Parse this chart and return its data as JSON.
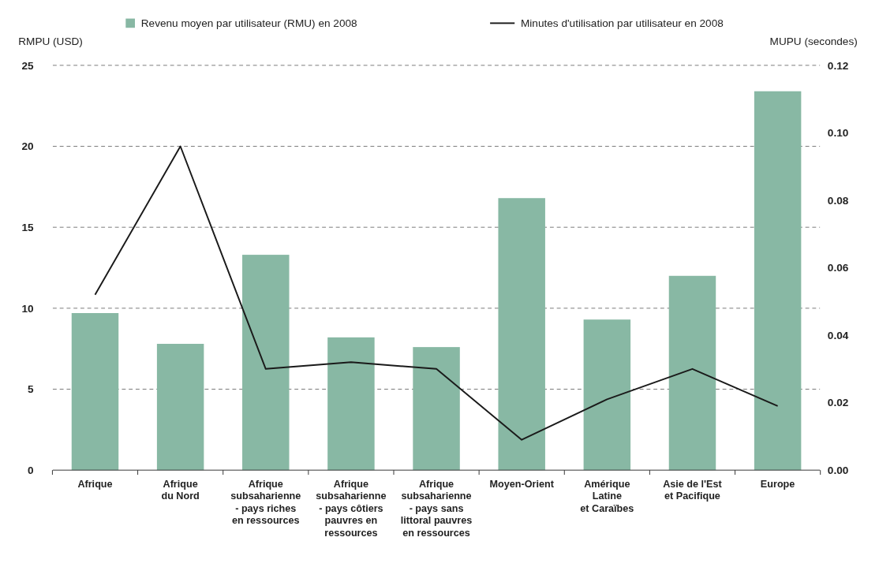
{
  "chart_data": {
    "type": "bar",
    "ylabel": "RMPU (USD)",
    "y2label": "MUPU (secondes)",
    "categories": [
      "Afrique",
      "Afrique\ndu Nord",
      "Afrique\nsubsaharienne\n- pays riches\nen ressources",
      "Afrique\nsubsaharienne\n- pays côtiers\npauvres en\nressources",
      "Afrique\nsubsaharienne\n- pays sans\nlittoral pauvres\nen ressources",
      "Moyen-Orient",
      "Amérique\nLatine\net Caraïbes",
      "Asie de l'Est\net Pacifique",
      "Europe"
    ],
    "series": [
      {
        "name": "Revenu moyen par utilisateur (RMU) en 2008",
        "color": "#88b8a4",
        "values": [
          9.7,
          7.8,
          13.3,
          8.2,
          7.6,
          16.8,
          9.3,
          12.0,
          23.4
        ]
      },
      {
        "name": "Minutes d'utilisation par utilisateur en 2008",
        "type": "line",
        "axis": "y2",
        "color": "#1a1a1a",
        "values": [
          0.052,
          0.096,
          0.03,
          0.032,
          0.03,
          0.009,
          0.021,
          0.03,
          0.019
        ]
      }
    ],
    "ylim": [
      0,
      25
    ],
    "yticks": [
      0,
      5,
      10,
      15,
      20,
      25
    ],
    "y2lim": [
      0,
      0.12
    ],
    "y2ticks": [
      {
        "value": 0,
        "label": "0.00"
      },
      {
        "value": 0.02,
        "label": "0.02"
      },
      {
        "value": 0.04,
        "label": "0.04"
      },
      {
        "value": 0.06,
        "label": "0.06"
      },
      {
        "value": 0.08,
        "label": "0.08"
      },
      {
        "value": 0.1,
        "label": "0.10"
      },
      {
        "value": 0.12,
        "label": "0.12"
      }
    ],
    "grid": "y",
    "legend": "top",
    "line_style": "solid",
    "marker": "none"
  }
}
